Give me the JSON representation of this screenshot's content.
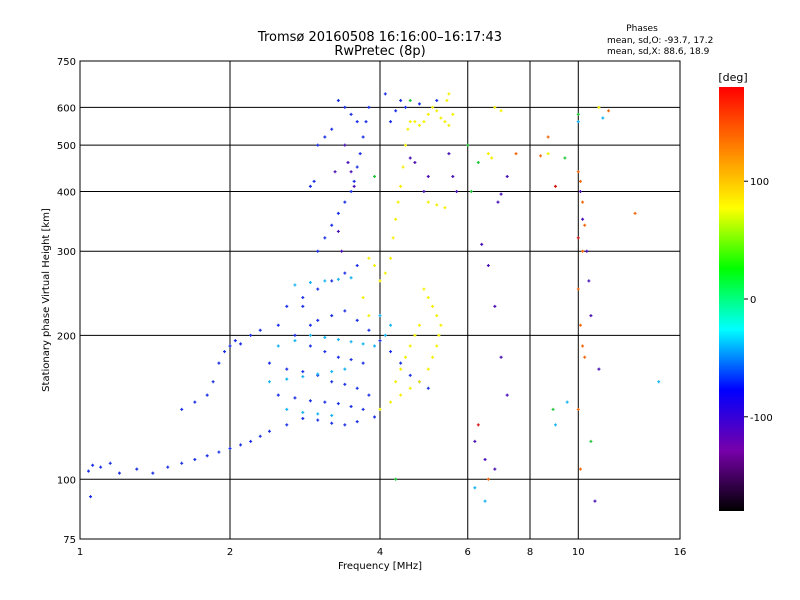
{
  "header": {
    "title_line1": "Tromsø 20160508 16:16:00–16:17:43",
    "title_line2": "RwPretec (8p)"
  },
  "stats": {
    "heading": "Phases",
    "line_o": "mean, sd,O: -93.7, 17.2",
    "line_x": "mean, sd,X:  88.6, 18.9"
  },
  "colorbar": {
    "label": "[deg]",
    "ticks": [
      "100",
      "0",
      "-100"
    ],
    "tick_values": [
      100,
      0,
      -100
    ],
    "range": [
      -180,
      180
    ],
    "colors": [
      "#000000",
      "#7700aa",
      "#0000ff",
      "#00ffff",
      "#00ff00",
      "#ffff00",
      "#ff8000",
      "#ff0000"
    ]
  },
  "chart_data": {
    "type": "scatter",
    "title": "Tromsø 20160508 16:16:00–16:17:43",
    "subtitle": "RwPretec (8p)",
    "xlabel": "Frequency [MHz]",
    "ylabel": "Stationary phase Virtual Height [km]",
    "xscale": "log",
    "yscale": "log",
    "xlim": [
      1,
      16
    ],
    "ylim": [
      75,
      750
    ],
    "xticks": [
      1,
      2,
      4,
      6,
      8,
      10,
      16
    ],
    "xtick_labels": [
      "1",
      "2",
      "4",
      "6",
      "8",
      "10",
      "16"
    ],
    "yticks": [
      75,
      100,
      200,
      300,
      400,
      500,
      600,
      750
    ],
    "ytick_labels": [
      "75",
      "100",
      "200",
      "300",
      "400",
      "500",
      "600",
      "750"
    ],
    "grid": true,
    "color_scale": "phase [deg], -180 to 180",
    "series": [
      {
        "points": [
          [
            1.05,
            92
          ],
          [
            1.04,
            104
          ],
          [
            1.06,
            107
          ],
          [
            1.1,
            106
          ],
          [
            1.15,
            108
          ],
          [
            1.2,
            103
          ],
          [
            1.3,
            105
          ],
          [
            1.4,
            103
          ],
          [
            1.5,
            106
          ],
          [
            1.6,
            108
          ],
          [
            1.7,
            110
          ],
          [
            1.8,
            112
          ],
          [
            1.9,
            114
          ],
          [
            2.0,
            116
          ],
          [
            2.1,
            118
          ],
          [
            2.2,
            120
          ],
          [
            2.3,
            123
          ],
          [
            2.4,
            126
          ],
          [
            2.6,
            130
          ],
          [
            2.8,
            134
          ],
          [
            3.0,
            133
          ],
          [
            3.2,
            131
          ],
          [
            3.4,
            130
          ],
          [
            3.6,
            132
          ],
          [
            3.9,
            135
          ],
          [
            1.6,
            140
          ],
          [
            1.7,
            145
          ],
          [
            1.8,
            150
          ],
          [
            1.85,
            160
          ],
          [
            1.9,
            175
          ],
          [
            1.95,
            185
          ],
          [
            2.0,
            190
          ],
          [
            2.05,
            195
          ],
          [
            2.1,
            192
          ],
          [
            2.2,
            200
          ],
          [
            2.3,
            205
          ],
          [
            2.5,
            210
          ],
          [
            2.7,
            200
          ],
          [
            2.9,
            190
          ],
          [
            3.1,
            185
          ],
          [
            3.3,
            180
          ],
          [
            3.5,
            178
          ],
          [
            3.7,
            175
          ],
          [
            2.4,
            175
          ],
          [
            2.6,
            170
          ],
          [
            2.8,
            168
          ],
          [
            3.0,
            165
          ],
          [
            3.2,
            160
          ],
          [
            3.4,
            158
          ],
          [
            3.6,
            155
          ],
          [
            3.8,
            150
          ],
          [
            2.5,
            150
          ],
          [
            2.7,
            148
          ],
          [
            2.9,
            146
          ],
          [
            3.1,
            145
          ],
          [
            3.3,
            144
          ],
          [
            3.5,
            142
          ],
          [
            3.7,
            140
          ],
          [
            2.6,
            230
          ],
          [
            2.8,
            240
          ],
          [
            3.0,
            250
          ],
          [
            3.2,
            260
          ],
          [
            3.4,
            270
          ],
          [
            3.6,
            280
          ],
          [
            3.0,
            300
          ],
          [
            3.1,
            320
          ],
          [
            3.2,
            340
          ],
          [
            3.3,
            360
          ],
          [
            3.4,
            380
          ],
          [
            3.5,
            400
          ],
          [
            3.55,
            420
          ],
          [
            3.6,
            450
          ],
          [
            3.65,
            480
          ],
          [
            3.7,
            520
          ],
          [
            3.75,
            560
          ],
          [
            3.8,
            600
          ],
          [
            3.3,
            620
          ],
          [
            3.4,
            600
          ],
          [
            3.5,
            580
          ],
          [
            3.6,
            560
          ],
          [
            3.0,
            500
          ],
          [
            3.1,
            520
          ],
          [
            3.2,
            540
          ],
          [
            2.8,
            230
          ],
          [
            2.9,
            210
          ],
          [
            3.0,
            215
          ],
          [
            3.2,
            220
          ],
          [
            3.4,
            225
          ],
          [
            3.6,
            215
          ],
          [
            3.8,
            205
          ],
          [
            4.0,
            195
          ],
          [
            4.2,
            185
          ],
          [
            4.4,
            175
          ],
          [
            4.6,
            165
          ],
          [
            4.8,
            160
          ],
          [
            5.0,
            155
          ],
          [
            2.9,
            410
          ],
          [
            2.95,
            420
          ],
          [
            4.2,
            560
          ],
          [
            4.3,
            590
          ],
          [
            4.4,
            620
          ],
          [
            4.1,
            640
          ],
          [
            4.5,
            600
          ],
          [
            4.8,
            610
          ],
          [
            5.2,
            620
          ]
        ],
        "color": "#1a2fe6"
      },
      {
        "points": [
          [
            4.0,
            140
          ],
          [
            4.2,
            145
          ],
          [
            4.4,
            150
          ],
          [
            4.6,
            155
          ],
          [
            4.8,
            160
          ],
          [
            5.0,
            170
          ],
          [
            5.1,
            180
          ],
          [
            5.2,
            190
          ],
          [
            5.25,
            200
          ],
          [
            5.3,
            210
          ],
          [
            5.2,
            220
          ],
          [
            5.1,
            230
          ],
          [
            5.0,
            240
          ],
          [
            4.9,
            250
          ],
          [
            4.3,
            160
          ],
          [
            4.4,
            170
          ],
          [
            4.5,
            180
          ],
          [
            4.6,
            190
          ],
          [
            4.7,
            200
          ],
          [
            4.8,
            210
          ],
          [
            4.2,
            290
          ],
          [
            4.25,
            320
          ],
          [
            4.3,
            350
          ],
          [
            4.35,
            380
          ],
          [
            4.4,
            410
          ],
          [
            4.45,
            450
          ],
          [
            4.5,
            500
          ],
          [
            4.55,
            540
          ],
          [
            4.6,
            560
          ],
          [
            4.7,
            560
          ],
          [
            4.8,
            550
          ],
          [
            4.9,
            560
          ],
          [
            5.0,
            580
          ],
          [
            5.1,
            600
          ],
          [
            5.2,
            590
          ],
          [
            5.3,
            570
          ],
          [
            5.4,
            560
          ],
          [
            5.5,
            550
          ],
          [
            5.6,
            580
          ],
          [
            4.0,
            260
          ],
          [
            4.1,
            270
          ],
          [
            3.9,
            280
          ],
          [
            3.8,
            290
          ],
          [
            3.7,
            240
          ],
          [
            3.8,
            220
          ],
          [
            5.0,
            380
          ],
          [
            5.2,
            375
          ],
          [
            5.4,
            370
          ],
          [
            5.5,
            640
          ],
          [
            5.45,
            620
          ],
          [
            7.0,
            590
          ],
          [
            6.8,
            600
          ],
          [
            6.6,
            480
          ],
          [
            6.7,
            470
          ],
          [
            11.0,
            600
          ],
          [
            8.7,
            480
          ]
        ],
        "color": "#f5f000"
      },
      {
        "points": [
          [
            2.5,
            190
          ],
          [
            2.7,
            195
          ],
          [
            2.9,
            200
          ],
          [
            3.1,
            198
          ],
          [
            3.3,
            196
          ],
          [
            3.5,
            194
          ],
          [
            3.7,
            192
          ],
          [
            3.9,
            190
          ],
          [
            2.4,
            160
          ],
          [
            2.6,
            162
          ],
          [
            2.8,
            164
          ],
          [
            3.0,
            166
          ],
          [
            3.2,
            168
          ],
          [
            3.4,
            170
          ],
          [
            2.6,
            140
          ],
          [
            2.8,
            138
          ],
          [
            3.0,
            137
          ],
          [
            3.2,
            136
          ],
          [
            2.7,
            255
          ],
          [
            2.9,
            258
          ],
          [
            3.1,
            260
          ],
          [
            3.3,
            262
          ],
          [
            3.5,
            264
          ],
          [
            4.1,
            200
          ],
          [
            4.2,
            210
          ],
          [
            4.0,
            220
          ],
          [
            6.2,
            96
          ],
          [
            6.5,
            90
          ],
          [
            10.0,
            560
          ],
          [
            11.2,
            570
          ],
          [
            14.5,
            160
          ],
          [
            9.0,
            130
          ],
          [
            9.5,
            145
          ]
        ],
        "color": "#16b4f2"
      },
      {
        "points": [
          [
            3.4,
            500
          ],
          [
            3.45,
            460
          ],
          [
            3.5,
            440
          ],
          [
            3.55,
            410
          ],
          [
            3.3,
            330
          ],
          [
            3.35,
            300
          ],
          [
            3.25,
            440
          ],
          [
            5.5,
            480
          ],
          [
            5.6,
            430
          ],
          [
            5.7,
            400
          ],
          [
            6.4,
            310
          ],
          [
            6.6,
            280
          ],
          [
            6.8,
            230
          ],
          [
            7.0,
            180
          ],
          [
            7.2,
            150
          ],
          [
            6.2,
            120
          ],
          [
            6.5,
            110
          ],
          [
            6.8,
            105
          ],
          [
            10.1,
            400
          ],
          [
            10.2,
            350
          ],
          [
            10.4,
            300
          ],
          [
            10.5,
            260
          ],
          [
            10.6,
            220
          ],
          [
            11.0,
            170
          ],
          [
            10.8,
            90
          ],
          [
            4.6,
            470
          ],
          [
            4.7,
            460
          ],
          [
            4.9,
            400
          ],
          [
            5.0,
            430
          ],
          [
            6.9,
            380
          ],
          [
            7.2,
            430
          ],
          [
            7.0,
            395
          ]
        ],
        "color": "#4a10b8"
      },
      {
        "points": [
          [
            8.4,
            475
          ],
          [
            7.5,
            480
          ],
          [
            10.0,
            440
          ],
          [
            10.1,
            420
          ],
          [
            10.2,
            380
          ],
          [
            10.3,
            340
          ],
          [
            10.2,
            300
          ],
          [
            10.0,
            250
          ],
          [
            10.1,
            210
          ],
          [
            10.2,
            190
          ],
          [
            10.3,
            180
          ],
          [
            10.0,
            140
          ],
          [
            10.1,
            105
          ],
          [
            6.6,
            100
          ],
          [
            8.7,
            520
          ],
          [
            11.5,
            590
          ],
          [
            13.0,
            360
          ]
        ],
        "color": "#f26a10"
      },
      {
        "points": [
          [
            8.9,
            140
          ],
          [
            10.6,
            120
          ],
          [
            10.0,
            580
          ],
          [
            6.1,
            400
          ],
          [
            6.3,
            460
          ],
          [
            9.4,
            470
          ],
          [
            6.0,
            500
          ],
          [
            4.3,
            100
          ],
          [
            4.6,
            620
          ],
          [
            3.9,
            430
          ]
        ],
        "color": "#22c83a"
      },
      {
        "points": [
          [
            6.3,
            130
          ],
          [
            9.0,
            410
          ],
          [
            10.0,
            320
          ]
        ],
        "color": "#d81818"
      }
    ]
  }
}
